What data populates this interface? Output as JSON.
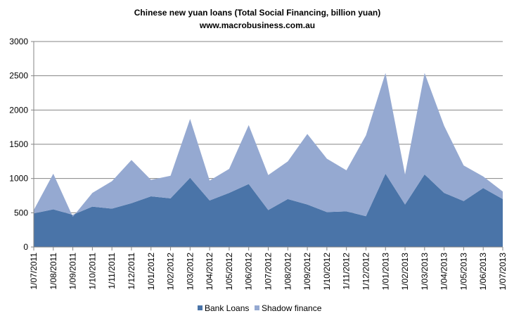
{
  "chart_data": {
    "type": "area",
    "stacked": true,
    "title": "Chinese new yuan loans (Total Social Financing, billion yuan)",
    "subtitle": "www.macrobusiness.com.au",
    "xlabel": "",
    "ylabel": "",
    "ylim": [
      0,
      3000
    ],
    "yticks": [
      "0",
      "500",
      "1000",
      "1500",
      "2000",
      "2500",
      "3000"
    ],
    "grid": true,
    "legend_position": "bottom",
    "categories": [
      "1/07/2011",
      "1/08/2011",
      "1/09/2011",
      "1/10/2011",
      "1/11/2011",
      "1/12/2011",
      "1/01/2012",
      "1/02/2012",
      "1/03/2012",
      "1/04/2012",
      "1/05/2012",
      "1/06/2012",
      "1/07/2012",
      "1/08/2012",
      "1/09/2012",
      "1/10/2012",
      "1/11/2012",
      "1/12/2012",
      "1/01/2013",
      "1/02/2013",
      "1/03/2013",
      "1/04/2013",
      "1/05/2013",
      "1/06/2013",
      "1/07/2013"
    ],
    "series": [
      {
        "name": "Bank Loans",
        "color": "#4a74a8",
        "values": [
          490,
          550,
          470,
          590,
          560,
          640,
          740,
          710,
          1010,
          680,
          790,
          920,
          540,
          700,
          620,
          510,
          520,
          450,
          1070,
          620,
          1060,
          790,
          670,
          860,
          700
        ]
      },
      {
        "name": "Shadow finance",
        "color": "#95a9d1",
        "values": [
          50,
          520,
          -30,
          200,
          400,
          630,
          240,
          330,
          860,
          290,
          350,
          860,
          510,
          550,
          1030,
          780,
          600,
          1180,
          1470,
          440,
          1480,
          980,
          520,
          170,
          110
        ]
      }
    ]
  }
}
